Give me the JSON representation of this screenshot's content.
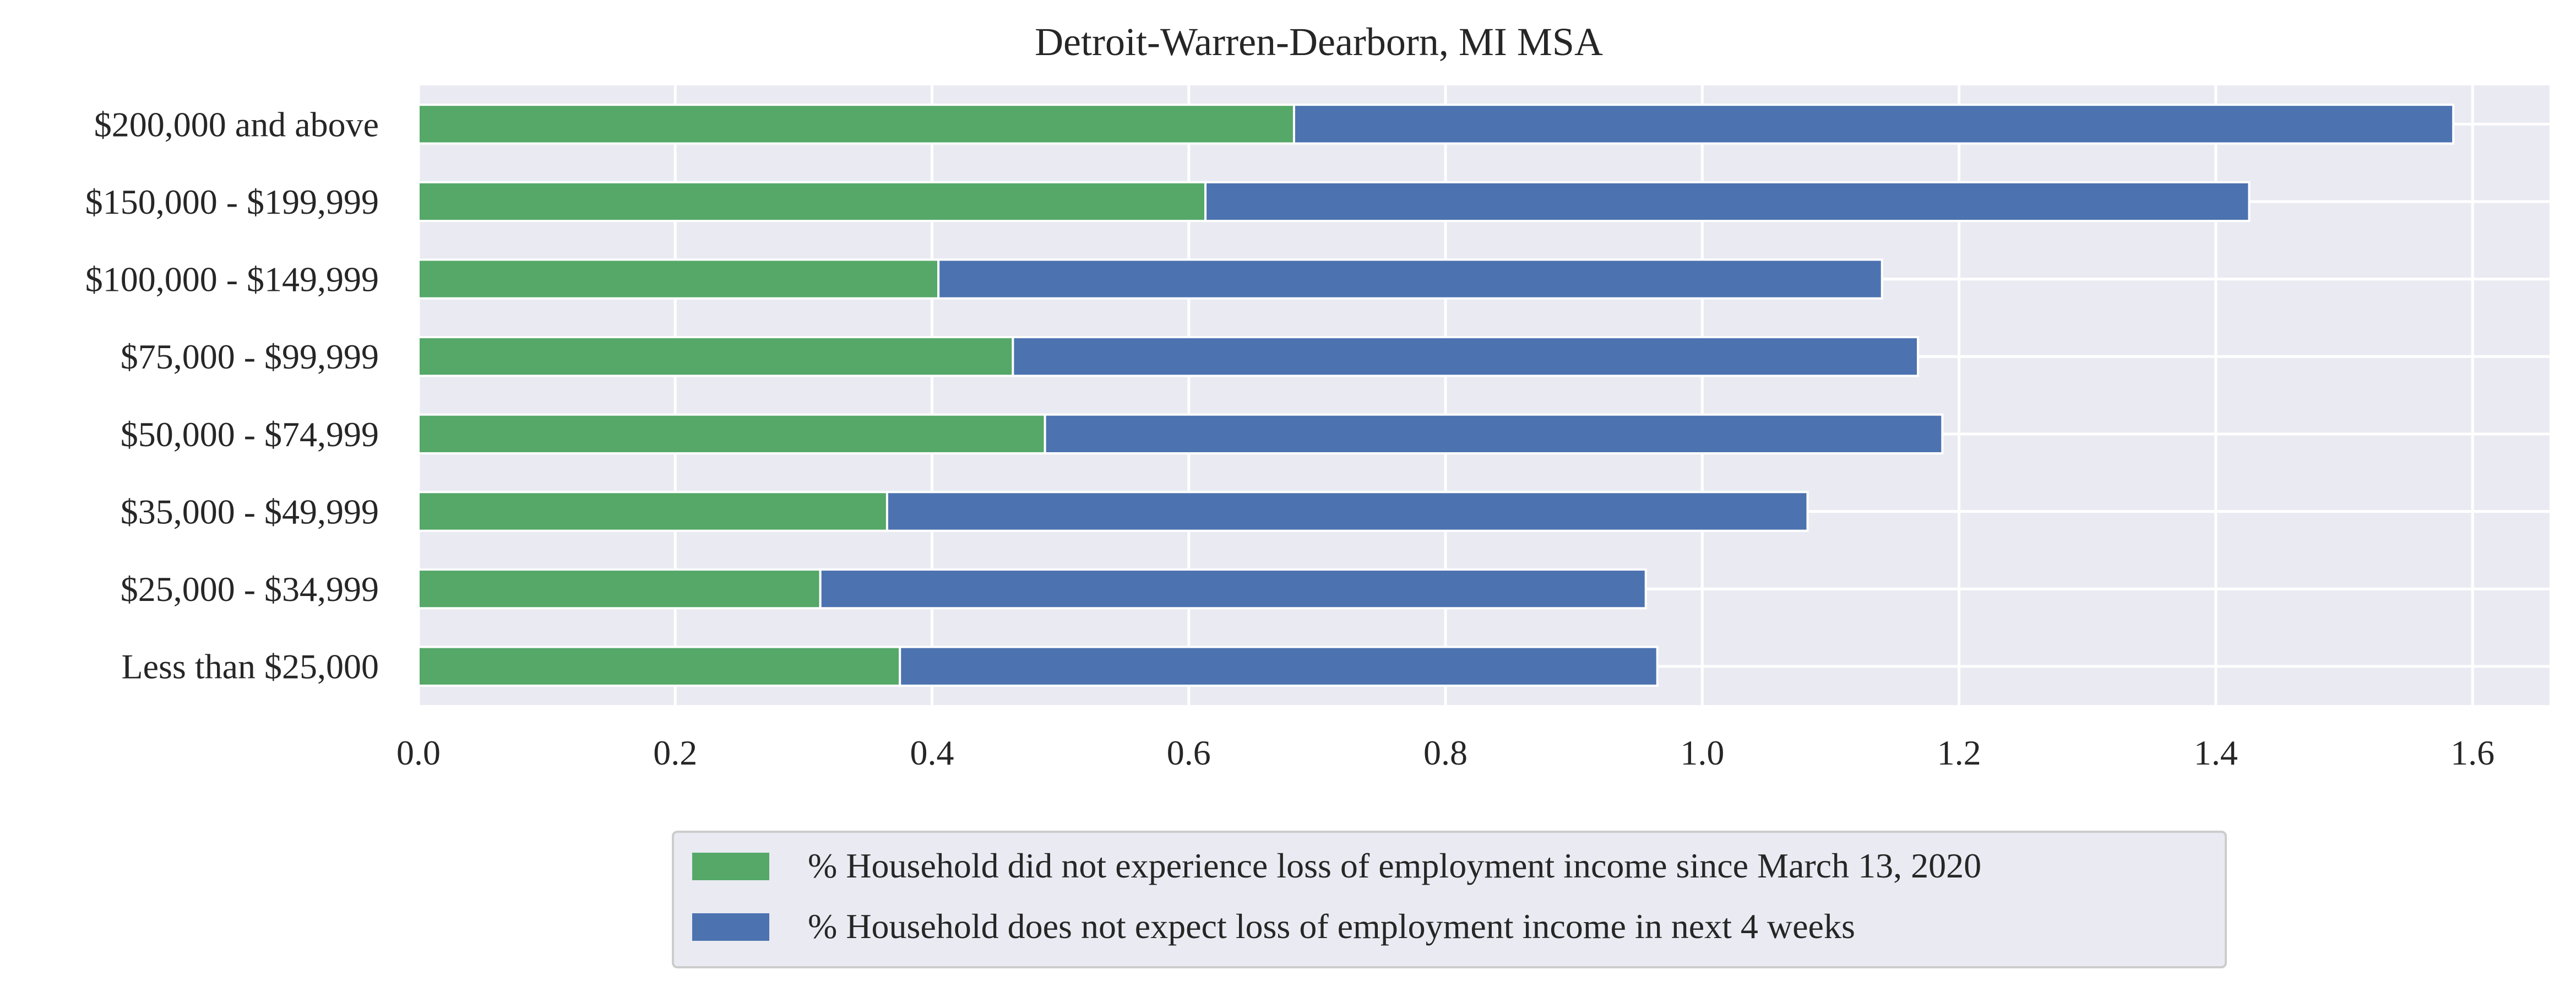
{
  "chart_data": {
    "type": "bar",
    "orientation": "horizontal",
    "stacked": true,
    "title": "Detroit-Warren-Dearborn, MI MSA",
    "xlabel": "",
    "ylabel": "",
    "categories": [
      "Less than $25,000",
      "$25,000 - $34,999",
      "$35,000 - $49,999",
      "$50,000 - $74,999",
      "$75,000 - $99,999",
      "$100,000 - $149,999",
      "$150,000 - $199,999",
      "$200,000 and above"
    ],
    "series": [
      {
        "name": "% Household did not experience loss of employment income since March 13, 2020",
        "color": "#55a868",
        "values": [
          0.375,
          0.313,
          0.365,
          0.488,
          0.463,
          0.405,
          0.613,
          0.682
        ]
      },
      {
        "name": "% Household does not expect loss of employment income in next 4 weeks",
        "color": "#4c72b0",
        "values": [
          0.59,
          0.643,
          0.717,
          0.699,
          0.705,
          0.735,
          0.813,
          0.903
        ]
      }
    ],
    "xlim": [
      0,
      1.66
    ],
    "xticks": [
      "0.0",
      "0.2",
      "0.4",
      "0.6",
      "0.8",
      "1.0",
      "1.2",
      "1.4",
      "1.6"
    ],
    "grid": true,
    "legend_position": "bottom-center",
    "background_color": "#eaeaf2"
  }
}
